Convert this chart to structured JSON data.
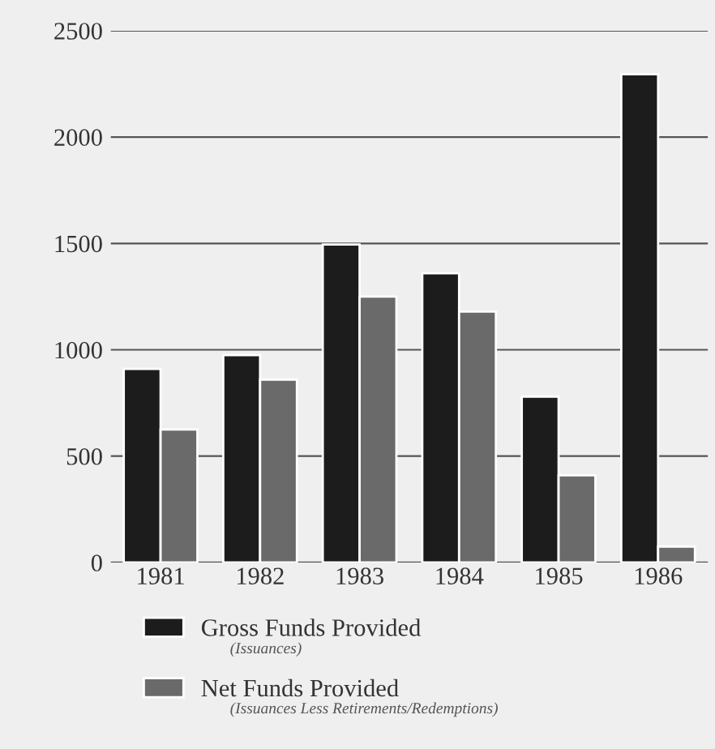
{
  "chart_data": {
    "type": "bar",
    "categories": [
      "1981",
      "1982",
      "1983",
      "1984",
      "1985",
      "1986"
    ],
    "series": [
      {
        "name": "Gross Funds Provided",
        "color": "#1c1c1c",
        "values": [
          910,
          975,
          1495,
          1360,
          780,
          2295
        ]
      },
      {
        "name": "Net Funds Provided",
        "color": "#6a6a6a",
        "values": [
          625,
          860,
          1250,
          1180,
          410,
          75
        ]
      }
    ],
    "annotations": [
      "(Issuances)",
      "(Issuances Less Retirements/Redemptions)"
    ],
    "ylim": [
      0,
      2500
    ],
    "yticks": [
      0,
      500,
      1000,
      1500,
      2000,
      2500
    ],
    "grid": "y",
    "legend": "bottom"
  }
}
